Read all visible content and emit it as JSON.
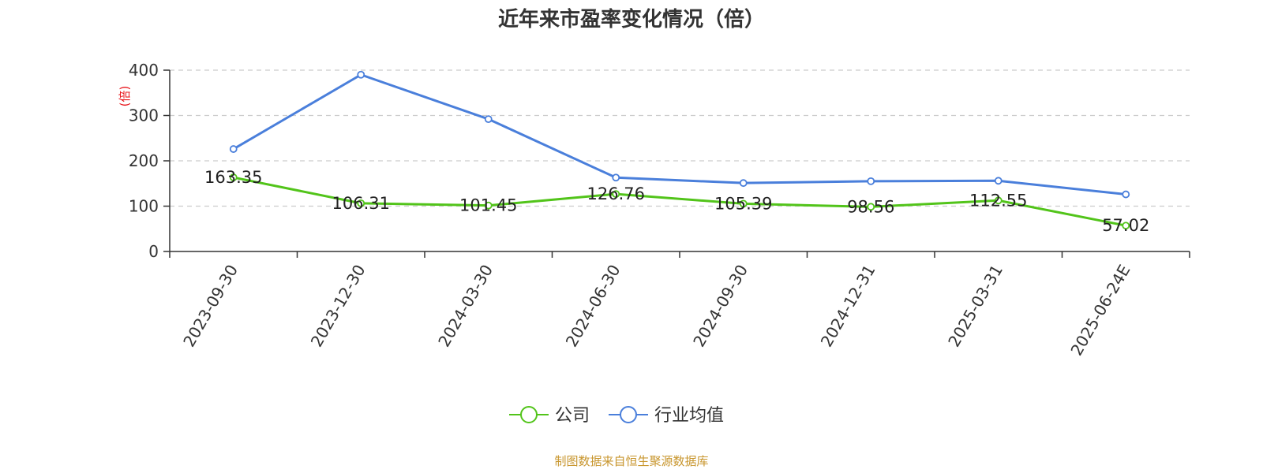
{
  "chart_data": {
    "type": "line",
    "title": "近年来市盈率变化情况（倍）",
    "ylabel": "(倍)",
    "ylim": [
      0,
      400
    ],
    "yticks": [
      0,
      100,
      200,
      300,
      400
    ],
    "grid": true,
    "legend_position": "bottom",
    "categories": [
      "2023-09-30",
      "2023-12-30",
      "2024-03-30",
      "2024-06-30",
      "2024-09-30",
      "2024-12-31",
      "2025-03-31",
      "2025-06-24E"
    ],
    "series": [
      {
        "name": "公司",
        "color": "#52c41a",
        "values": [
          163.35,
          106.31,
          101.45,
          126.76,
          105.39,
          98.56,
          112.55,
          57.02
        ],
        "labels": [
          "163.35",
          "106.31",
          "101.45",
          "126.76",
          "105.39",
          "98.56",
          "112.55",
          "57.02"
        ]
      },
      {
        "name": "行业均值",
        "color": "#4a7fdb",
        "values": [
          226,
          390,
          292,
          163,
          151,
          155,
          156,
          126
        ]
      }
    ],
    "source": "制图数据来自恒生聚源数据库",
    "colors": {
      "ylabel": "#e8151b",
      "source": "#c8962e",
      "grid": "#cccccc",
      "axis": "#333333"
    }
  }
}
